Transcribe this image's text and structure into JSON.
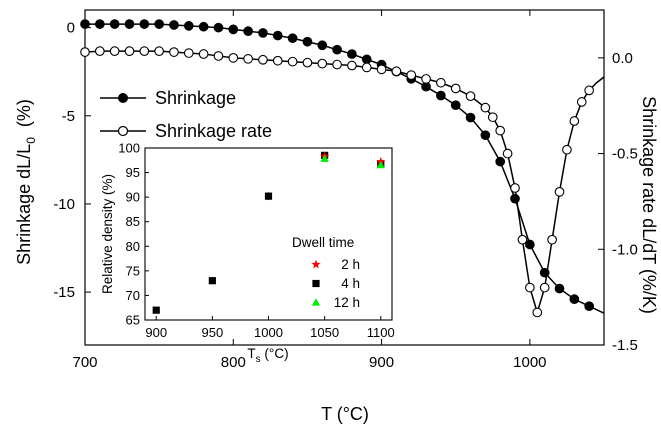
{
  "chart_data": [
    {
      "type": "line",
      "x_label": "T   (°C)",
      "y_label_main": "Shrinkage dL/L",
      "y_label_sub": "0",
      "y_label_unit": "(%)",
      "y2_label": "Shrinkage rate dL/dT  (%/K)",
      "xlim": [
        700,
        1050
      ],
      "ylim": [
        -18,
        1
      ],
      "y2lim": [
        -1.5,
        0.25
      ],
      "x_ticks": [
        "700",
        "800",
        "900",
        "1000"
      ],
      "y_ticks": [
        "0",
        "-5",
        "-10",
        "-15"
      ],
      "y2_ticks": [
        "0.0",
        "-0.5",
        "-1.0",
        "-1.5"
      ],
      "legend": [
        {
          "name": "Shrinkage",
          "marker": "filled-circle"
        },
        {
          "name": "Shrinkage rate",
          "marker": "open-circle"
        }
      ],
      "series": [
        {
          "name": "Shrinkage",
          "axis": "left",
          "x": [
            700,
            710,
            720,
            730,
            740,
            750,
            760,
            770,
            780,
            790,
            800,
            810,
            820,
            830,
            840,
            850,
            860,
            870,
            880,
            890,
            900,
            910,
            920,
            930,
            940,
            950,
            960,
            970,
            980,
            990,
            1000,
            1010,
            1020,
            1030,
            1040,
            1050
          ],
          "y": [
            0.2,
            0.2,
            0.2,
            0.2,
            0.2,
            0.2,
            0.15,
            0.1,
            0.05,
            0.0,
            -0.1,
            -0.2,
            -0.3,
            -0.45,
            -0.6,
            -0.8,
            -1.0,
            -1.25,
            -1.5,
            -1.8,
            -2.1,
            -2.5,
            -2.9,
            -3.35,
            -3.85,
            -4.4,
            -5.1,
            -6.1,
            -7.6,
            -9.7,
            -12.3,
            -13.9,
            -14.8,
            -15.4,
            -15.8,
            -16.2
          ]
        },
        {
          "name": "Shrinkage rate",
          "axis": "right",
          "x": [
            700,
            710,
            720,
            730,
            740,
            750,
            760,
            770,
            780,
            790,
            800,
            810,
            820,
            830,
            840,
            850,
            860,
            870,
            880,
            890,
            900,
            910,
            920,
            930,
            940,
            950,
            960,
            970,
            975,
            980,
            985,
            990,
            995,
            1000,
            1005,
            1010,
            1015,
            1020,
            1025,
            1030,
            1035,
            1040,
            1045,
            1050
          ],
          "y": [
            0.03,
            0.035,
            0.035,
            0.035,
            0.035,
            0.035,
            0.03,
            0.025,
            0.02,
            0.01,
            0.0,
            -0.005,
            -0.01,
            -0.015,
            -0.02,
            -0.025,
            -0.03,
            -0.035,
            -0.04,
            -0.05,
            -0.06,
            -0.07,
            -0.09,
            -0.11,
            -0.13,
            -0.16,
            -0.2,
            -0.26,
            -0.31,
            -0.38,
            -0.5,
            -0.68,
            -0.95,
            -1.2,
            -1.33,
            -1.2,
            -0.95,
            -0.7,
            -0.48,
            -0.33,
            -0.23,
            -0.17,
            -0.13,
            -0.1
          ]
        }
      ]
    },
    {
      "type": "scatter",
      "inset": true,
      "x_label_main": "T",
      "x_label_sub": "s",
      "x_label_unit": " (°C)",
      "y_label": "Relative density (%)",
      "xlim": [
        890,
        1110
      ],
      "ylim": [
        65,
        100
      ],
      "x_ticks": [
        "900",
        "950",
        "1000",
        "1050",
        "1100"
      ],
      "y_ticks": [
        "65",
        "70",
        "75",
        "80",
        "85",
        "90",
        "95",
        "100"
      ],
      "legend_title": "Dwell time",
      "series": [
        {
          "name": "2 h",
          "marker": "star",
          "color": "#ff0000",
          "x": [
            1050,
            1100
          ],
          "y": [
            98.3,
            97.2
          ]
        },
        {
          "name": "4 h",
          "marker": "square",
          "color": "#000000",
          "x": [
            900,
            950,
            1000,
            1050,
            1100
          ],
          "y": [
            67.0,
            73.0,
            90.2,
            98.5,
            96.8
          ],
          "yerr": [
            0,
            0,
            0.8,
            0,
            0
          ]
        },
        {
          "name": "12 h",
          "marker": "triangle",
          "color": "#00ee00",
          "x": [
            1050,
            1100
          ],
          "y": [
            97.8,
            96.5
          ]
        }
      ]
    }
  ]
}
